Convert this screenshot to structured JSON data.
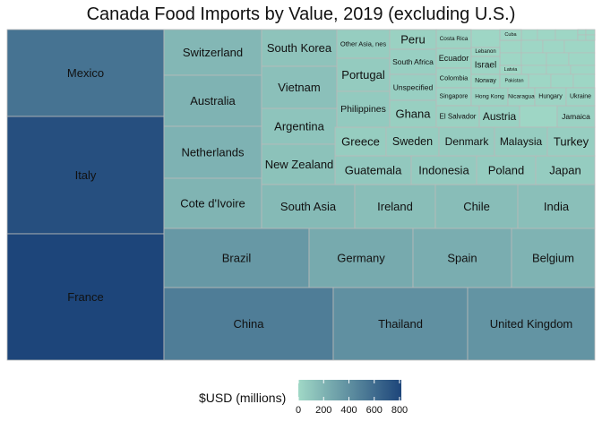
{
  "chart_data": {
    "type": "treemap",
    "title": "Canada Food Imports by Value, 2019 (excluding U.S.)",
    "value_unit": "$USD (millions)",
    "color_scale": {
      "low": "#a0d8c6",
      "high": "#1d457a",
      "range": [
        0,
        800
      ],
      "ticks": [
        "0",
        "200",
        "400",
        "600",
        "800"
      ]
    },
    "items": [
      {
        "name": "Mexico",
        "value": 550
      },
      {
        "name": "Italy",
        "value": 743
      },
      {
        "name": "France",
        "value": 800
      },
      {
        "name": "Switzerland",
        "value": 180
      },
      {
        "name": "Australia",
        "value": 201
      },
      {
        "name": "Netherlands",
        "value": 205
      },
      {
        "name": "Cote d'Ivoire",
        "value": 198
      },
      {
        "name": "South Korea",
        "value": 112
      },
      {
        "name": "Vietnam",
        "value": 128
      },
      {
        "name": "Argentina",
        "value": 109
      },
      {
        "name": "New Zealand",
        "value": 122
      },
      {
        "name": "South Asia",
        "value": 165
      },
      {
        "name": "Ireland",
        "value": 143
      },
      {
        "name": "Chile",
        "value": 146
      },
      {
        "name": "India",
        "value": 136
      },
      {
        "name": "Brazil",
        "value": 346
      },
      {
        "name": "Germany",
        "value": 248
      },
      {
        "name": "Spain",
        "value": 235
      },
      {
        "name": "Belgium",
        "value": 199
      },
      {
        "name": "China",
        "value": 496
      },
      {
        "name": "Thailand",
        "value": 393
      },
      {
        "name": "United Kingdom",
        "value": 372
      },
      {
        "name": "Guatemala",
        "value": 88
      },
      {
        "name": "Indonesia",
        "value": 76
      },
      {
        "name": "Poland",
        "value": 68
      },
      {
        "name": "Japan",
        "value": 68
      },
      {
        "name": "Greece",
        "value": 59
      },
      {
        "name": "Sweden",
        "value": 61
      },
      {
        "name": "Denmark",
        "value": 64
      },
      {
        "name": "Malaysia",
        "value": 61
      },
      {
        "name": "Turkey",
        "value": 55
      },
      {
        "name": "Other Asia, nes",
        "value": 62
      },
      {
        "name": "Portugal",
        "value": 72
      },
      {
        "name": "Philippines",
        "value": 78
      },
      {
        "name": "Peru",
        "value": 37
      },
      {
        "name": "South Africa",
        "value": 47
      },
      {
        "name": "Unspecified",
        "value": 47
      },
      {
        "name": "Ghana",
        "value": 50
      },
      {
        "name": "Costa Rica",
        "value": 27
      },
      {
        "name": "Ecuador",
        "value": 28
      },
      {
        "name": "Colombia",
        "value": 28
      },
      {
        "name": "Singapore",
        "value": 25
      },
      {
        "name": "El Salvador",
        "value": 37
      },
      {
        "name": "Austria",
        "value": 35
      },
      {
        "name": "Jamaica",
        "value": 33
      },
      {
        "name": "Hong Kong",
        "value": 27
      },
      {
        "name": "Nicaragua",
        "value": 19
      },
      {
        "name": "Hungary",
        "value": 21
      },
      {
        "name": "Ukraine",
        "value": 21
      },
      {
        "name": "Lebanon",
        "value": 10
      },
      {
        "name": "Israel",
        "value": 22
      },
      {
        "name": "Norway",
        "value": 16
      },
      {
        "name": "Latvia",
        "value": 8
      },
      {
        "name": "Pakistan",
        "value": 16
      },
      {
        "name": "Cuba",
        "value": 9
      }
    ]
  }
}
